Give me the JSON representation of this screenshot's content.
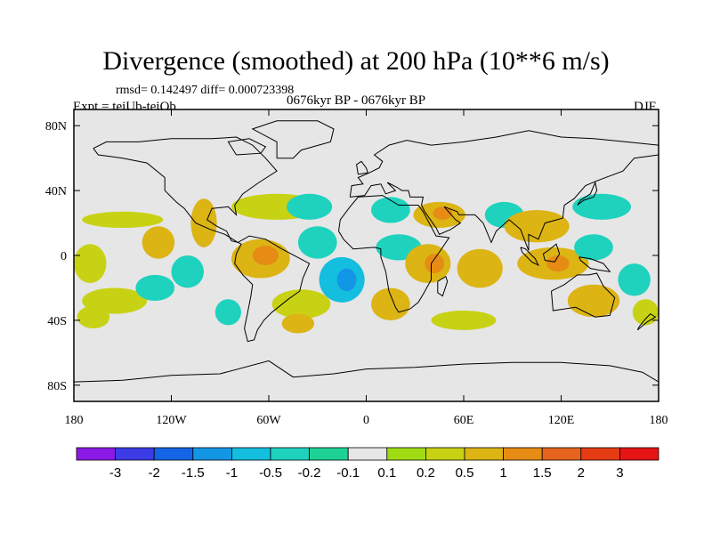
{
  "chart_data": {
    "type": "filled-contour-map",
    "title": "Divergence (smoothed) at 200 hPa (10**6 m/s)",
    "stats": "rmsd= 0.142497 diff= 0.000723398",
    "experiment": "Expt = teiUb-teiOb",
    "period": "0676kyr BP - 0676kyr BP",
    "season": "DJF",
    "lon_range": [
      -180,
      180
    ],
    "lat_range": [
      -90,
      90
    ],
    "x_ticks": [
      {
        "value": -180,
        "label": "180"
      },
      {
        "value": -120,
        "label": "120W"
      },
      {
        "value": -60,
        "label": "60W"
      },
      {
        "value": 0,
        "label": "0"
      },
      {
        "value": 60,
        "label": "60E"
      },
      {
        "value": 120,
        "label": "120E"
      },
      {
        "value": 180,
        "label": "180"
      }
    ],
    "y_ticks": [
      {
        "value": 80,
        "label": "80N"
      },
      {
        "value": 40,
        "label": "40N"
      },
      {
        "value": 0,
        "label": "0"
      },
      {
        "value": -40,
        "label": "40S"
      },
      {
        "value": -80,
        "label": "80S"
      }
    ],
    "background_color": "#e6e6e6",
    "colorbar": {
      "levels": [
        "-3",
        "-2",
        "-1.5",
        "-1",
        "-0.5",
        "-0.2",
        "-0.1",
        "0.1",
        "0.2",
        "0.5",
        "1",
        "1.5",
        "2",
        "3"
      ],
      "colors": [
        "#8c1ae6",
        "#3c3ce6",
        "#1464e6",
        "#1496e6",
        "#14bede",
        "#1ed2be",
        "#1ed296",
        "#e6e6e6",
        "#a0dc14",
        "#c8d214",
        "#dcb414",
        "#e68c14",
        "#e6641e",
        "#e63c14",
        "#e61414"
      ]
    },
    "regions": [
      {
        "name": "n-atl-band",
        "lon": -150,
        "lat": 22,
        "rlon": 25,
        "rlat": 5,
        "level": "0.2"
      },
      {
        "name": "c-pac-blob",
        "lon": -128,
        "lat": 8,
        "rlon": 10,
        "rlat": 10,
        "level": "0.5"
      },
      {
        "name": "e-pac-pos",
        "lon": -100,
        "lat": 20,
        "rlon": 8,
        "rlat": 15,
        "level": "0.5"
      },
      {
        "name": "trop-pac-west",
        "lon": -170,
        "lat": -5,
        "rlon": 10,
        "rlat": 12,
        "level": "0.2"
      },
      {
        "name": "s-pac-pos",
        "lon": -155,
        "lat": -28,
        "rlon": 20,
        "rlat": 8,
        "level": "0.2"
      },
      {
        "name": "s-pac-neg",
        "lon": -130,
        "lat": -20,
        "rlon": 12,
        "rlat": 8,
        "level": "-0.2"
      },
      {
        "name": "far-south-pac",
        "lon": -168,
        "lat": -38,
        "rlon": 10,
        "rlat": 7,
        "level": "0.2"
      },
      {
        "name": "e-pac-neg",
        "lon": -110,
        "lat": -10,
        "rlon": 10,
        "rlat": 10,
        "level": "-0.2"
      },
      {
        "name": "s-pac-neg2",
        "lon": -85,
        "lat": -35,
        "rlon": 8,
        "rlat": 8,
        "level": "-0.2"
      },
      {
        "name": "s-am-pos",
        "lon": -65,
        "lat": -2,
        "rlon": 18,
        "rlat": 12,
        "level": "0.5"
      },
      {
        "name": "s-am-core",
        "lon": -62,
        "lat": 0,
        "rlon": 8,
        "rlat": 6,
        "level": "1"
      },
      {
        "name": "n-am-band",
        "lon": -55,
        "lat": 30,
        "rlon": 28,
        "rlat": 8,
        "level": "0.2"
      },
      {
        "name": "n-atl-neg",
        "lon": -35,
        "lat": 30,
        "rlon": 14,
        "rlat": 8,
        "level": "-0.2"
      },
      {
        "name": "trop-atl-neg",
        "lon": -30,
        "lat": 8,
        "rlon": 12,
        "rlat": 10,
        "level": "-0.2"
      },
      {
        "name": "s-atl-neg",
        "lon": -15,
        "lat": -15,
        "rlon": 14,
        "rlat": 14,
        "level": "-0.5"
      },
      {
        "name": "s-atl-core",
        "lon": -12,
        "lat": -15,
        "rlon": 6,
        "rlat": 7,
        "level": "-1"
      },
      {
        "name": "s-atl-pos",
        "lon": -40,
        "lat": -30,
        "rlon": 18,
        "rlat": 9,
        "level": "0.2"
      },
      {
        "name": "s-atl-pos2",
        "lon": -42,
        "lat": -42,
        "rlon": 10,
        "rlat": 6,
        "level": "0.5"
      },
      {
        "name": "n-afr-neg",
        "lon": 15,
        "lat": 28,
        "rlon": 12,
        "rlat": 8,
        "level": "-0.2"
      },
      {
        "name": "arabia-pos",
        "lon": 45,
        "lat": 25,
        "rlon": 16,
        "rlat": 8,
        "level": "0.5"
      },
      {
        "name": "arabia-core",
        "lon": 47,
        "lat": 26,
        "rlon": 6,
        "rlat": 4,
        "level": "1"
      },
      {
        "name": "afr-neg",
        "lon": 20,
        "lat": 5,
        "rlon": 14,
        "rlat": 8,
        "level": "-0.2"
      },
      {
        "name": "afr-pos",
        "lon": 38,
        "lat": -5,
        "rlon": 14,
        "rlat": 12,
        "level": "0.5"
      },
      {
        "name": "afr-core",
        "lon": 42,
        "lat": -5,
        "rlon": 6,
        "rlat": 6,
        "level": "1"
      },
      {
        "name": "s-afr-pos",
        "lon": 15,
        "lat": -30,
        "rlon": 12,
        "rlat": 10,
        "level": "0.5"
      },
      {
        "name": "s-ind-pos",
        "lon": 60,
        "lat": -40,
        "rlon": 20,
        "rlat": 6,
        "level": "0.2"
      },
      {
        "name": "ind-ocean-pos",
        "lon": 70,
        "lat": -8,
        "rlon": 14,
        "rlat": 12,
        "level": "0.5"
      },
      {
        "name": "ind-neg",
        "lon": 85,
        "lat": 25,
        "rlon": 12,
        "rlat": 8,
        "level": "-0.2"
      },
      {
        "name": "asia-pos",
        "lon": 105,
        "lat": 18,
        "rlon": 20,
        "rlat": 10,
        "level": "0.5"
      },
      {
        "name": "maritime-pos",
        "lon": 115,
        "lat": -5,
        "rlon": 22,
        "rlat": 10,
        "level": "0.5"
      },
      {
        "name": "maritime-core",
        "lon": 118,
        "lat": -5,
        "rlon": 7,
        "rlat": 5,
        "level": "1"
      },
      {
        "name": "wpac-neg",
        "lon": 145,
        "lat": 30,
        "rlon": 18,
        "rlat": 8,
        "level": "-0.2"
      },
      {
        "name": "wpac-neg2",
        "lon": 140,
        "lat": 5,
        "rlon": 12,
        "rlat": 8,
        "level": "-0.2"
      },
      {
        "name": "aus-pos",
        "lon": 140,
        "lat": -28,
        "rlon": 16,
        "rlat": 10,
        "level": "0.5"
      },
      {
        "name": "sw-pac-neg",
        "lon": 165,
        "lat": -15,
        "rlon": 10,
        "rlat": 10,
        "level": "-0.2"
      },
      {
        "name": "nz-pos",
        "lon": 172,
        "lat": -35,
        "rlon": 8,
        "rlat": 8,
        "level": "0.2"
      }
    ]
  }
}
